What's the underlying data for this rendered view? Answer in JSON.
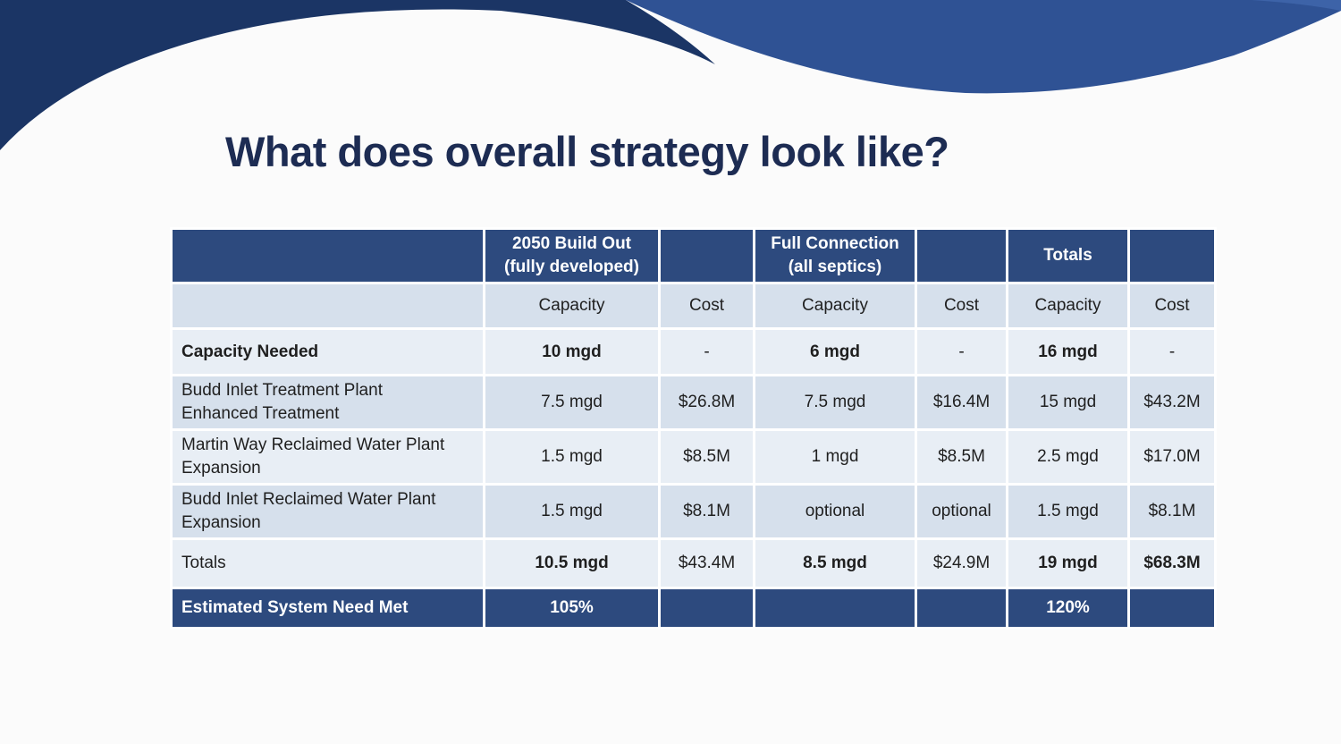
{
  "slide": {
    "title": "What does overall strategy look like?"
  },
  "table": {
    "group_headers": {
      "build_out": "2050 Build Out",
      "build_out_sub": "(fully developed)",
      "full_connection": "Full Connection",
      "full_connection_sub": "(all septics)",
      "totals": "Totals"
    },
    "sub_headers": [
      "Capacity",
      "Cost",
      "Capacity",
      "Cost",
      "Capacity",
      "Cost"
    ],
    "rows": [
      {
        "label": "Capacity Needed",
        "cells": [
          "10 mgd",
          "-",
          "6 mgd",
          "-",
          "16 mgd",
          "-"
        ]
      },
      {
        "label_line1": "Budd Inlet Treatment Plant",
        "label_line2": "Enhanced Treatment",
        "cells": [
          "7.5 mgd",
          "$26.8M",
          "7.5 mgd",
          "$16.4M",
          "15 mgd",
          "$43.2M"
        ]
      },
      {
        "label_line1": "Martin Way Reclaimed Water Plant",
        "label_line2": "Expansion",
        "cells": [
          "1.5 mgd",
          "$8.5M",
          "1 mgd",
          "$8.5M",
          "2.5 mgd",
          "$17.0M"
        ]
      },
      {
        "label_line1": "Budd Inlet Reclaimed Water Plant",
        "label_line2": "Expansion",
        "cells": [
          "1.5 mgd",
          "$8.1M",
          "optional",
          "optional",
          "1.5 mgd",
          "$8.1M"
        ]
      },
      {
        "label": "Totals",
        "cells": [
          "10.5 mgd",
          "$43.4M",
          "8.5 mgd",
          "$24.9M",
          "19 mgd",
          "$68.3M"
        ]
      }
    ],
    "footer": {
      "label": "Estimated System Need Met",
      "build_out_value": "105%",
      "totals_value": "120%"
    }
  },
  "colors": {
    "header_blue": "#2d4a7e",
    "title_navy": "#1d2c53",
    "wave_dark": "#1b3565",
    "wave_mid": "#2f5294",
    "row_light": "#e8eef5",
    "row_mid": "#d6e0ec"
  }
}
